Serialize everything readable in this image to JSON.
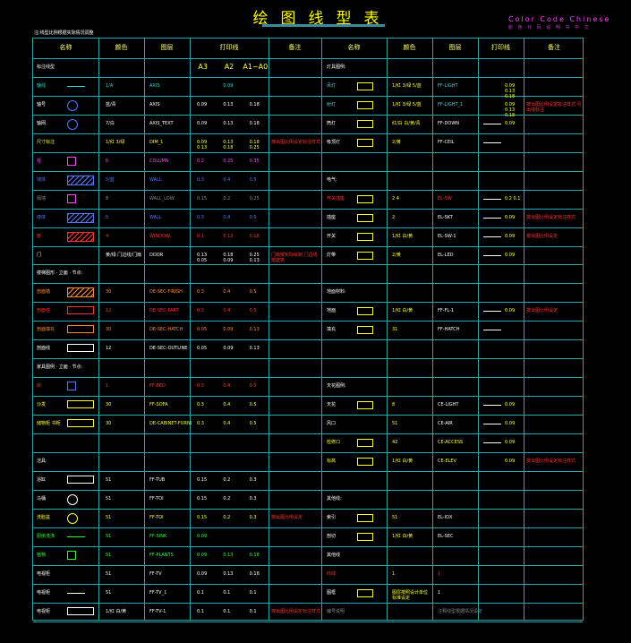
{
  "header": {
    "title": "绘图线型表",
    "brand_line1": "Color Code Chinese",
    "brand_line2": "颜 色 代 码 说 明 书 中 文",
    "note": "注:线型比例根据实际情况调整"
  },
  "colors": {
    "grid": "#2aa7a7",
    "title": "#ffff00",
    "brand": "#ff44ff"
  },
  "table": {
    "headers": [
      "名称",
      "颜色",
      "图层",
      "打印线",
      "备注",
      "名称",
      "颜色",
      "图层",
      "打印线",
      "备注"
    ],
    "print_sizes": [
      "A3",
      "A2",
      "A1~A0"
    ],
    "left_rows": [
      {
        "n": "标注线型",
        "k": "",
        "l": "",
        "p1": "",
        "p2": "",
        "p3": "",
        "r": "",
        "nc": "w"
      },
      {
        "n": "轴线",
        "k": "1/A",
        "l": "AXIS",
        "p1": "",
        "p2": "0.09",
        "p3": "",
        "r": "",
        "nc": "c"
      },
      {
        "n": "轴号",
        "k": "蓝/青",
        "l": "AXIS",
        "p1": "0.09",
        "p2": "0.13",
        "p3": "0.18",
        "r": "",
        "nc": "w"
      },
      {
        "n": "轴网",
        "k": "7/白",
        "l": "AXIS_TEXT",
        "p1": "0.09",
        "p2": "0.13",
        "p3": "0.18",
        "r": "",
        "nc": "w"
      },
      {
        "n": "尺寸标注",
        "k": "1/红 3/绿",
        "l": "DIM_1",
        "p1": "0.09 0.13",
        "p2": "0.13 0.18",
        "p3": "0.18 0.25",
        "r": "按出图比例设定标注样式",
        "nc": "y"
      },
      {
        "n": "柱",
        "k": "6",
        "l": "COLUMN",
        "p1": "0.2",
        "p2": "0.25",
        "p3": "0.35",
        "r": "",
        "nc": "m"
      },
      {
        "n": "墙体",
        "k": "5/蓝",
        "l": "WALL",
        "p1": "0.3",
        "p2": "0.4",
        "p3": "0.5",
        "r": "",
        "nc": "b"
      },
      {
        "n": "隔墙",
        "k": "8",
        "l": "WALL_LOW",
        "p1": "0.15",
        "p2": "0.2",
        "p3": "0.25",
        "r": "",
        "nc": "gr"
      },
      {
        "n": "墙体",
        "k": "5",
        "l": "WALL",
        "p1": "0.3",
        "p2": "0.4",
        "p3": "0.5",
        "r": "",
        "nc": "b"
      },
      {
        "n": "窗",
        "k": "4",
        "l": "WINDOW",
        "p1": "0.1",
        "p2": "0.13",
        "p3": "0.18",
        "r": "",
        "nc": "r"
      },
      {
        "n": "门",
        "k": "黄/绿 门边线/门扇",
        "l": "DOOR",
        "p1": "0.13 0.05",
        "p2": "0.18 0.09",
        "p3": "0.25 0.13",
        "r": "门扇按实际绘制 门边线按建筑",
        "nc": "w"
      },
      {
        "n": "楼梯图形 · 立面 · 节点:",
        "k": "",
        "l": "",
        "p1": "",
        "p2": "",
        "p3": "",
        "r": "",
        "nc": "w"
      },
      {
        "n": "剖面墙",
        "k": "30",
        "l": "DE-SEC-FINISH",
        "p1": "0.3",
        "p2": "0.4",
        "p3": "0.5",
        "r": "",
        "nc": "o"
      },
      {
        "n": "剖面柱",
        "k": "12",
        "l": "DE-SEC-PART",
        "p1": "0.3",
        "p2": "0.4",
        "p3": "0.5",
        "r": "",
        "nc": "r"
      },
      {
        "n": "剖面填充",
        "k": "30",
        "l": "DE-SEC-HATCH",
        "p1": "0.05",
        "p2": "0.09",
        "p3": "0.13",
        "r": "",
        "nc": "o"
      },
      {
        "n": "剖面线",
        "k": "12",
        "l": "DE-SEC-OUTLINE",
        "p1": "0.05",
        "p2": "0.09",
        "p3": "0.13",
        "r": "",
        "nc": "w"
      },
      {
        "n": "家具图例 · 立面 · 节点:",
        "k": "",
        "l": "",
        "p1": "",
        "p2": "",
        "p3": "",
        "r": "",
        "nc": "w"
      },
      {
        "n": "床",
        "k": "1",
        "l": "FF-BED",
        "p1": "0.3",
        "p2": "0.4",
        "p3": "0.5",
        "r": "",
        "nc": "r"
      },
      {
        "n": "沙发",
        "k": "30",
        "l": "FF-SOFA",
        "p1": "0.3",
        "p2": "0.4",
        "p3": "0.5",
        "r": "",
        "nc": "y"
      },
      {
        "n": "储物柜 书柜",
        "k": "30",
        "l": "DE-CABINET-FURNI",
        "p1": "0.3",
        "p2": "0.4",
        "p3": "0.5",
        "r": "",
        "nc": "y"
      },
      {
        "n": "",
        "k": "",
        "l": "",
        "p1": "",
        "p2": "",
        "p3": "",
        "r": "",
        "nc": "w"
      },
      {
        "n": "洁具:",
        "k": "",
        "l": "",
        "p1": "",
        "p2": "",
        "p3": "",
        "r": "",
        "nc": "w"
      },
      {
        "n": "浴缸",
        "k": "51",
        "l": "FF-TUB",
        "p1": "0.15",
        "p2": "0.2",
        "p3": "0.3",
        "r": "",
        "nc": "w"
      },
      {
        "n": "马桶",
        "k": "51",
        "l": "FF-TOI",
        "p1": "0.15",
        "p2": "0.2",
        "p3": "0.3",
        "r": "",
        "nc": "w"
      },
      {
        "n": "洗脸盆",
        "k": "51",
        "l": "FF-TOI",
        "p1": "0.15",
        "p2": "0.2",
        "p3": "0.3",
        "r": "按出图比例设定",
        "nc": "y"
      },
      {
        "n": "厨房洗涤",
        "k": "51",
        "l": "FF-SINK",
        "p1": "0.09",
        "p2": "",
        "p3": "",
        "r": "",
        "nc": "g"
      },
      {
        "n": "植物",
        "k": "51",
        "l": "FF-PLANTS",
        "p1": "0.09",
        "p2": "0.13",
        "p3": "0.18",
        "r": "",
        "nc": "g"
      },
      {
        "n": "电视柜",
        "k": "51",
        "l": "FF-TV",
        "p1": "0.09",
        "p2": "0.13",
        "p3": "0.18",
        "r": "",
        "nc": "w"
      },
      {
        "n": "电视柜",
        "k": "51",
        "l": "FF-TV_1",
        "p1": "0.1",
        "p2": "0.1",
        "p3": "0.1",
        "r": "",
        "nc": "w"
      },
      {
        "n": "电视柜",
        "k": "1/红 白/黄",
        "l": "FF-TV-1",
        "p1": "0.1",
        "p2": "0.1",
        "p3": "0.1",
        "r": "按出图比例设定标注样式",
        "nc": "w"
      }
    ],
    "right_rows": [
      {
        "n": "灯具图例:",
        "k": "",
        "l": "",
        "p": "",
        "r": "",
        "nc": "w"
      },
      {
        "n": "吊灯",
        "k": "1/红 3/绿 5/蓝",
        "l": "FF-LIGHT",
        "p": "0.09 0.13 0.18",
        "r": "",
        "nc": "c"
      },
      {
        "n": "射灯",
        "k": "1/红 3/绿 5/蓝",
        "l": "FF-LIGHT_1",
        "p": "0.09 0.13 0.18",
        "r": "按出图比例设定标注样式 引出线标注",
        "nc": "c"
      },
      {
        "n": "筒灯",
        "k": "红/白 白/黄/青",
        "l": "FF-DOWN",
        "p": "0.09",
        "r": "",
        "nc": "w"
      },
      {
        "n": "吸顶灯",
        "k": "2/黄",
        "l": "FF-CEIL",
        "p": "",
        "r": "",
        "nc": "w"
      },
      {
        "n": "",
        "k": "",
        "l": "",
        "p": "",
        "r": "",
        "nc": "w"
      },
      {
        "n": "电气:",
        "k": "",
        "l": "",
        "p": "",
        "r": "",
        "nc": "w"
      },
      {
        "n": "开关插座",
        "k": "2 4",
        "l": "EL-SW",
        "p": "0.2 0.1",
        "r": "",
        "nc": "r"
      },
      {
        "n": "插座",
        "k": "2",
        "l": "EL-SKT",
        "p": "0.09",
        "r": "按出图比例设定标注样式",
        "nc": "w"
      },
      {
        "n": "开关",
        "k": "1/红 白/黄",
        "l": "EL-SW-1",
        "p": "0.09",
        "r": "按出图比例设定",
        "nc": "w"
      },
      {
        "n": "灯带",
        "k": "2/黄",
        "l": "EL-LED",
        "p": "0.09",
        "r": "",
        "nc": "w"
      },
      {
        "n": "",
        "k": "",
        "l": "",
        "p": "",
        "r": "",
        "nc": "w"
      },
      {
        "n": "地面材料:",
        "k": "",
        "l": "",
        "p": "",
        "r": "",
        "nc": "w"
      },
      {
        "n": "地面",
        "k": "1/红 白/黄",
        "l": "FF-FL-1",
        "p": "0.09",
        "r": "按出图比例设定",
        "nc": "w"
      },
      {
        "n": "填充",
        "k": "31",
        "l": "FF-HATCH",
        "p": "",
        "r": "",
        "nc": "w"
      },
      {
        "n": "",
        "k": "",
        "l": "",
        "p": "",
        "r": "",
        "nc": "w"
      },
      {
        "n": "",
        "k": "",
        "l": "",
        "p": "",
        "r": "",
        "nc": "w"
      },
      {
        "n": "天花图例:",
        "k": "",
        "l": "",
        "p": "",
        "r": "",
        "nc": "w"
      },
      {
        "n": "天花",
        "k": "8",
        "l": "CE-LIGHT",
        "p": "0.09",
        "r": "",
        "nc": "w"
      },
      {
        "n": "风口",
        "k": "51",
        "l": "CE-AIR",
        "p": "0.09",
        "r": "",
        "nc": "w"
      },
      {
        "n": "检修口",
        "k": "42",
        "l": "CE-ACCESS",
        "p": "0.09",
        "r": "",
        "nc": "y"
      },
      {
        "n": "标高",
        "k": "1/红 白/黄",
        "l": "CE-ELEV",
        "p": "0.09",
        "r": "按出图比例设定标注样式",
        "nc": "y"
      },
      {
        "n": "",
        "k": "",
        "l": "",
        "p": "",
        "r": "",
        "nc": "w"
      },
      {
        "n": "其他线:",
        "k": "",
        "l": "",
        "p": "",
        "r": "",
        "nc": "w"
      },
      {
        "n": "索引",
        "k": "51",
        "l": "EL-IDX",
        "p": "",
        "r": "",
        "nc": "w"
      },
      {
        "n": "剖切",
        "k": "1/红 白/黄",
        "l": "EL-SEC",
        "p": "",
        "r": "",
        "nc": "w"
      },
      {
        "n": "其他线",
        "k": "",
        "l": "",
        "p": "",
        "r": "",
        "nc": "w"
      },
      {
        "n": "红线",
        "k": "1",
        "l": "1",
        "p": "",
        "r": "",
        "nc": "r"
      },
      {
        "n": "图框",
        "k": "图层按照设计单位 标准设定",
        "l": "1",
        "p": "",
        "r": "",
        "nc": "w"
      },
      {
        "n": "编号说明",
        "k": "",
        "l": "注释线型根据情况设定",
        "p": "",
        "r": "",
        "nc": "gr"
      }
    ]
  }
}
